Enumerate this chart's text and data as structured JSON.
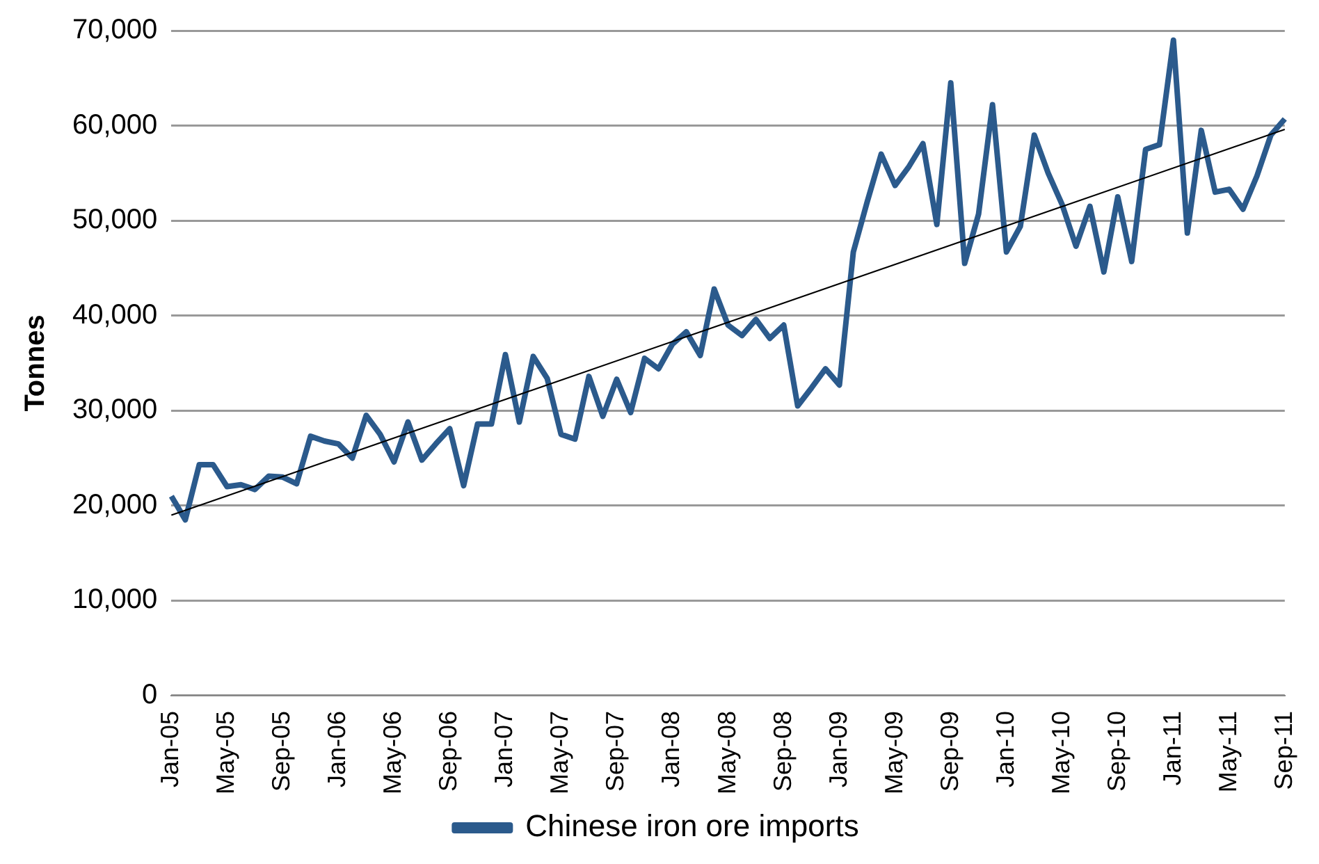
{
  "chart_data": {
    "type": "line",
    "ylabel": "Tonnes",
    "categories": [
      "Jan-05",
      null,
      null,
      null,
      "May-05",
      null,
      null,
      null,
      "Sep-05",
      null,
      null,
      null,
      "Jan-06",
      null,
      null,
      null,
      "May-06",
      null,
      null,
      null,
      "Sep-06",
      null,
      null,
      null,
      "Jan-07",
      null,
      null,
      null,
      "May-07",
      null,
      null,
      null,
      "Sep-07",
      null,
      null,
      null,
      "Jan-08",
      null,
      null,
      null,
      "May-08",
      null,
      null,
      null,
      "Sep-08",
      null,
      null,
      null,
      "Jan-09",
      null,
      null,
      null,
      "May-09",
      null,
      null,
      null,
      "Sep-09",
      null,
      null,
      null,
      "Jan-10",
      null,
      null,
      null,
      "May-10",
      null,
      null,
      null,
      "Sep-10",
      null,
      null,
      null,
      "Jan-11",
      null,
      null,
      null,
      "May-11",
      null,
      null,
      null,
      "Sep-11"
    ],
    "series": [
      {
        "name": "Chinese iron ore imports",
        "color": "#2b5a8c",
        "values": [
          21000,
          18500,
          24300,
          24300,
          22000,
          22200,
          21700,
          23100,
          23000,
          22300,
          27300,
          26800,
          26500,
          25000,
          29500,
          27500,
          24600,
          28800,
          24800,
          26500,
          28100,
          22100,
          28600,
          28600,
          35900,
          28800,
          35700,
          33400,
          27500,
          27000,
          33600,
          29400,
          33300,
          29800,
          35500,
          34400,
          37000,
          38300,
          35800,
          42800,
          39000,
          37900,
          39600,
          37600,
          39000,
          30500,
          32400,
          34400,
          32700,
          46700,
          52000,
          57000,
          53700,
          55700,
          58100,
          49600,
          64500,
          45500,
          50700,
          62200,
          46700,
          49400,
          59000,
          55000,
          51700,
          47300,
          51500,
          44600,
          52500,
          45700,
          57500,
          58000,
          69000,
          48700,
          59500,
          53000,
          53300,
          51200,
          54700,
          59000,
          60700
        ]
      },
      {
        "type": "line",
        "color": "#000000",
        "x": [
          "Jan-05",
          "Sep-11"
        ],
        "values": [
          19000,
          59600
        ]
      }
    ],
    "ylim": [
      0,
      70000
    ],
    "yticks": [
      0,
      {
        "value": 10000,
        "label": "10,000"
      },
      {
        "value": 20000,
        "label": "20,000"
      },
      {
        "value": 30000,
        "label": "30,000"
      },
      {
        "value": 40000,
        "label": "40,000"
      },
      {
        "value": 50000,
        "label": "50,000"
      },
      {
        "value": 60000,
        "label": "60,000"
      },
      {
        "value": 70000,
        "label": "70,000"
      }
    ],
    "grid": "y",
    "legend": "bottom",
    "marker": "none"
  }
}
